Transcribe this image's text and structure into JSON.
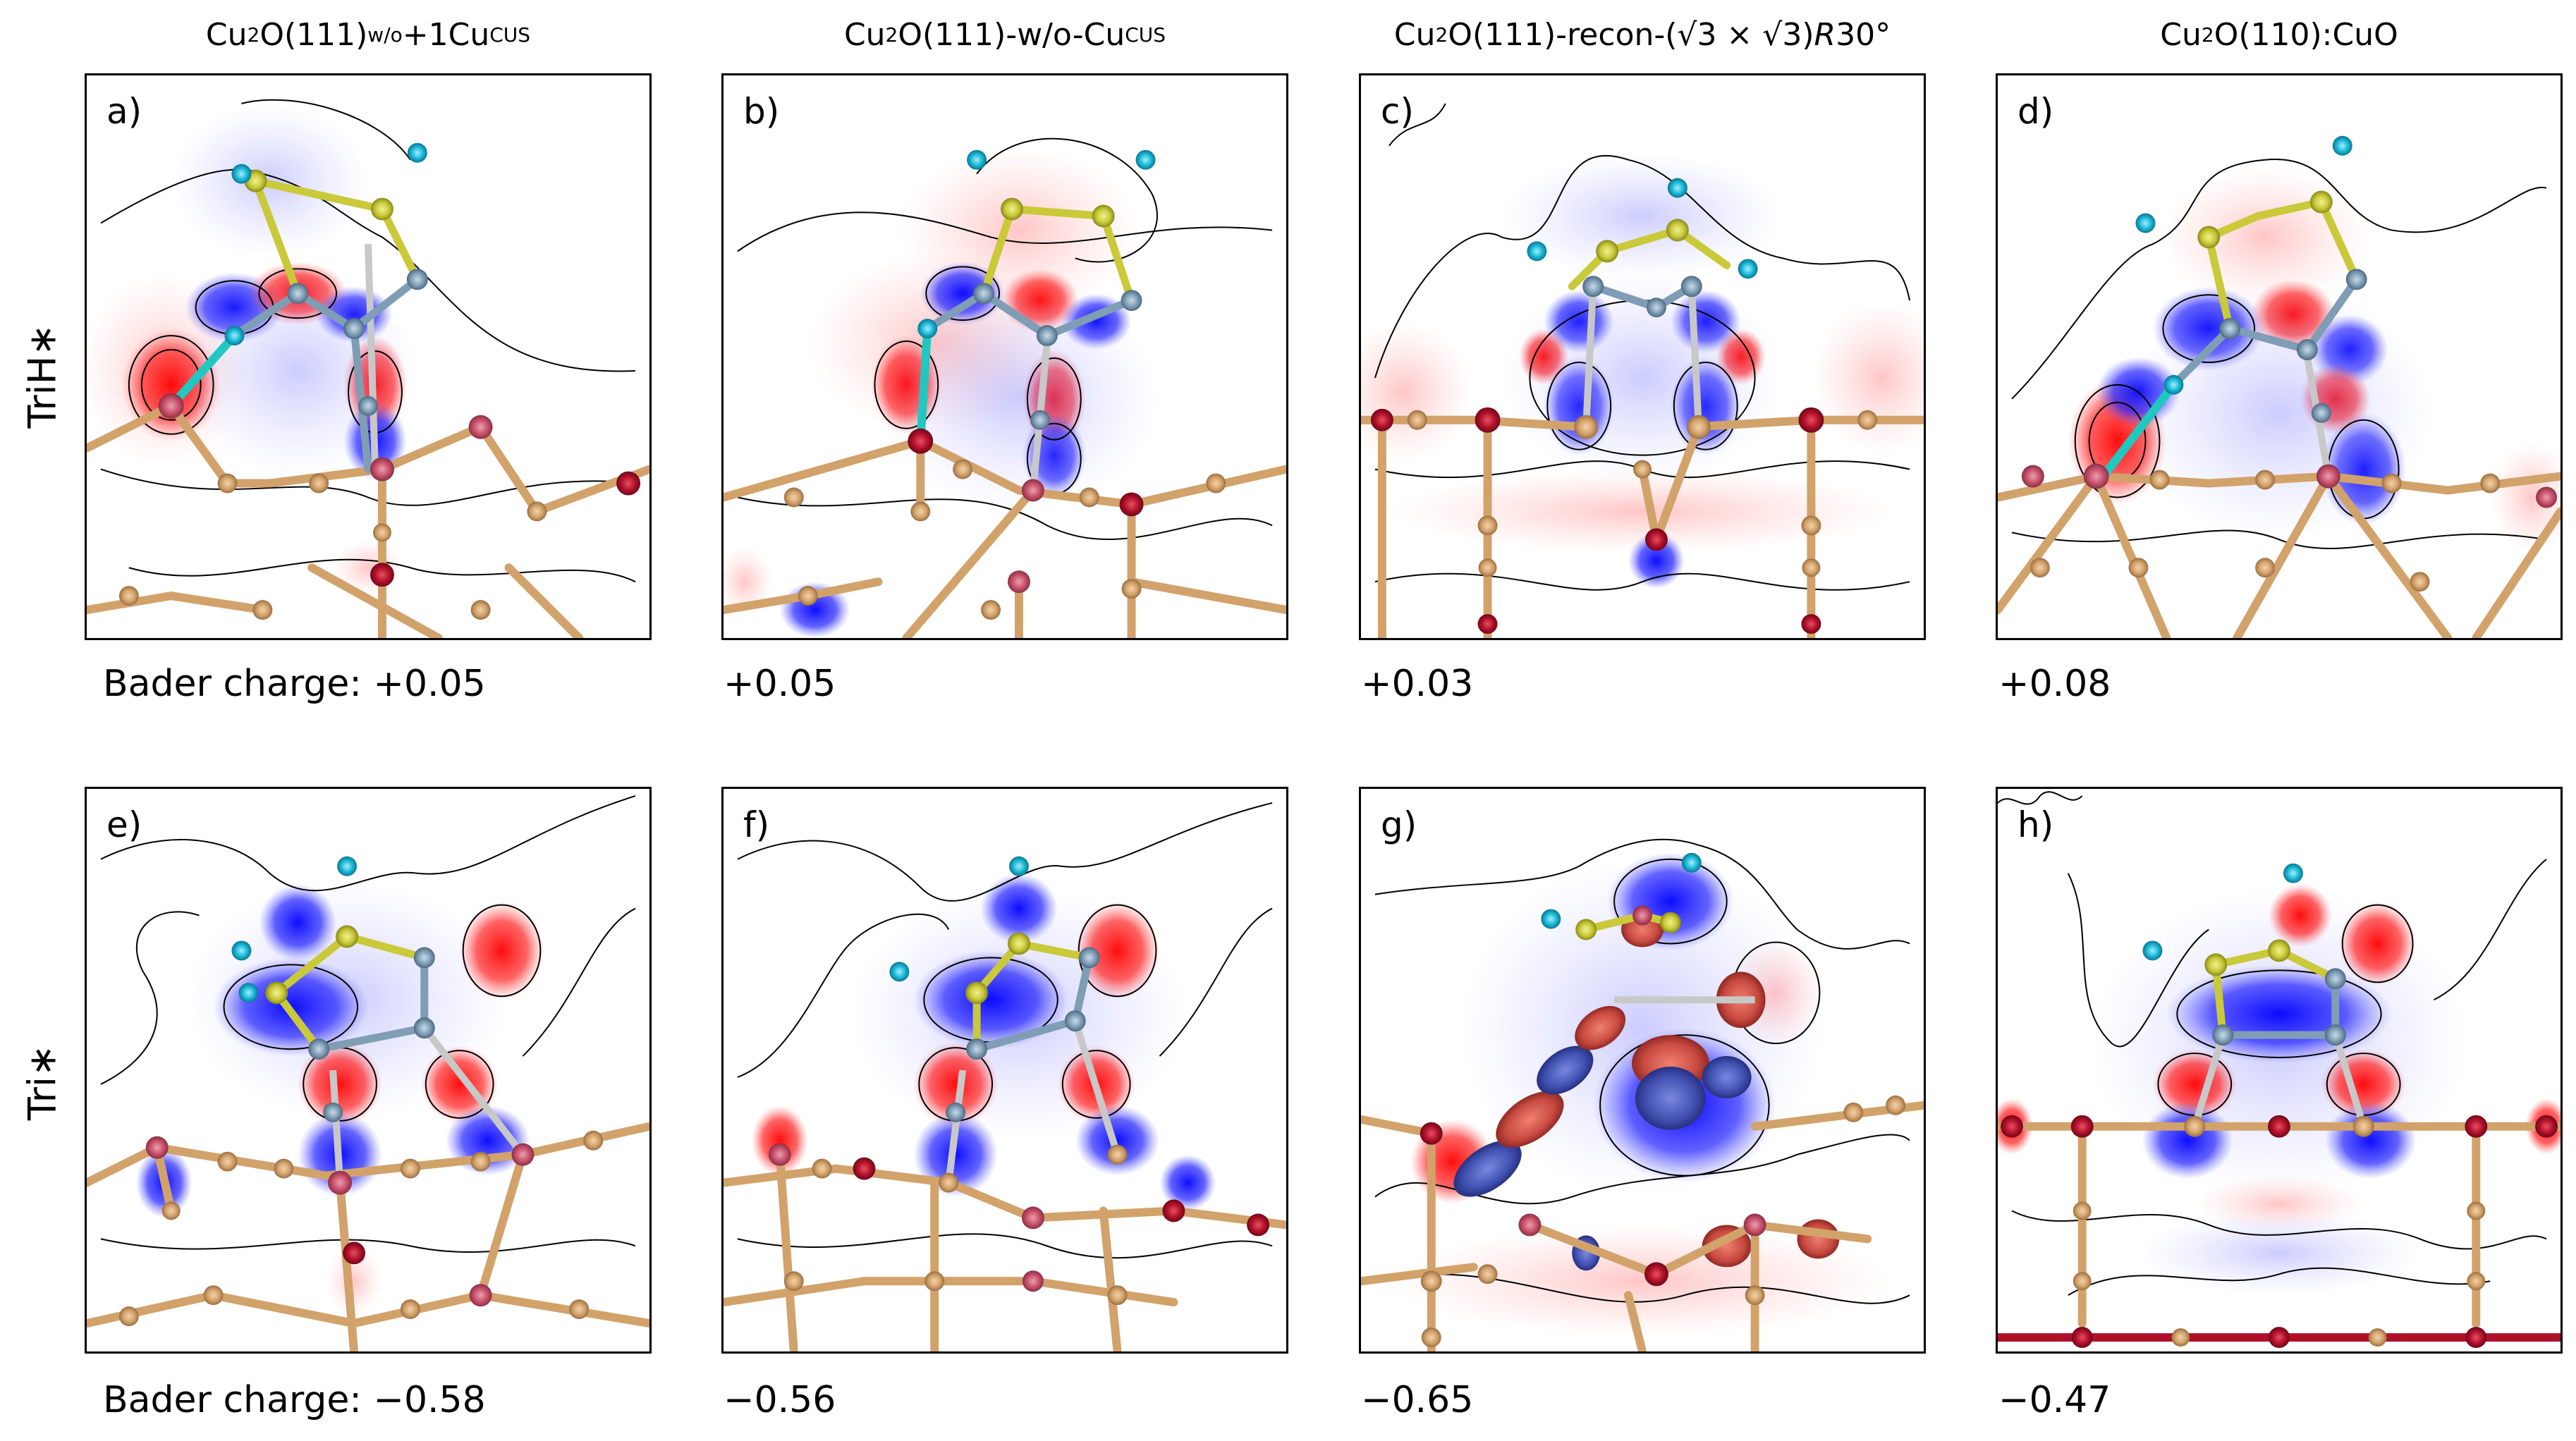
{
  "columns": [
    {
      "base": "Cu",
      "sub1": "2",
      "mid": "O(111)",
      "sub2": "w/o",
      "tail": "+1Cu",
      "sup": "CUS"
    },
    {
      "base": "Cu",
      "sub1": "2",
      "mid": "O(111)-w/o-Cu",
      "sup": "CUS"
    },
    {
      "base": "Cu",
      "sub1": "2",
      "mid": "O(111)-recon-(√3 × √3)",
      "ital": "R",
      "tail": "30°"
    },
    {
      "base": "Cu",
      "sub1": "2",
      "mid": "O(110):CuO"
    }
  ],
  "rows": [
    {
      "label": "TriH∗"
    },
    {
      "label": "Tri∗"
    }
  ],
  "panels": [
    {
      "label": "a)",
      "bader": "Bader charge: +0.05"
    },
    {
      "label": "b)",
      "bader": "+0.05"
    },
    {
      "label": "c)",
      "bader": "+0.03"
    },
    {
      "label": "d)",
      "bader": "+0.08"
    },
    {
      "label": "e)",
      "bader": "Bader charge: −0.58"
    },
    {
      "label": "f)",
      "bader": "−0.56"
    },
    {
      "label": "g)",
      "bader": "−0.65"
    },
    {
      "label": "h)",
      "bader": "−0.47"
    }
  ],
  "colors": {
    "accumulation": "#ff1a1a",
    "depletion": "#1a1aff",
    "copper": "#d2a26b",
    "oxygen": "#b0102a",
    "surface_oxygen": "#c8506a",
    "boron": "#c9c93a",
    "carbon": "#7f9db5",
    "hydrogen": "#19b5d5",
    "h_bond": "#20c8c0"
  }
}
